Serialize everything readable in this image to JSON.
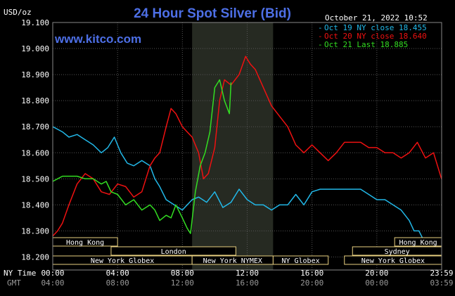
{
  "chart_data": {
    "type": "line",
    "title": "24 Hour Spot Silver (Bid)",
    "watermark": "www.kitco.com",
    "timestamp": "October 21, 2022 10:52",
    "ylabel": "USD/oz",
    "ylim": [
      18.15,
      19.1
    ],
    "yticks": [
      "19.100",
      "19.000",
      "18.900",
      "18.800",
      "18.700",
      "18.600",
      "18.500",
      "18.400",
      "18.300",
      "18.200"
    ],
    "ytick_values": [
      19.1,
      19.0,
      18.9,
      18.8,
      18.7,
      18.6,
      18.5,
      18.4,
      18.3,
      18.2
    ],
    "xlim": [
      0,
      24
    ],
    "x_tick_hours": [
      0,
      4,
      8,
      12,
      16,
      20,
      24
    ],
    "x_axis_ny_label": "NY Time",
    "x_axis_gmt_label": "GMT",
    "x_ticks_ny": [
      "00:00",
      "04:00",
      "08:00",
      "12:00",
      "16:00",
      "20:00",
      "23:59"
    ],
    "x_ticks_gmt": [
      "04:00",
      "08:00",
      "12:00",
      "16:00",
      "20:00",
      "00:00",
      "03:59"
    ],
    "shaded_region": [
      8.6,
      13.6
    ],
    "colors": {
      "background": "#000000",
      "plot_background": "#000000",
      "shade": "#262a22",
      "grid": "#555555",
      "title": "#4d6fe6",
      "watermark": "#4d6fe6",
      "oct19": "#22b8e8",
      "oct20": "#ee1111",
      "oct21": "#33dd22",
      "session_box": "#e8d080",
      "label_text": "#ffffff"
    },
    "legend_position": "top-right",
    "series": [
      {
        "name": "Oct 19 NY close 18.455",
        "color": "#22b8e8",
        "x": [
          0,
          0.3,
          0.6,
          1.0,
          1.5,
          2.0,
          2.5,
          3.0,
          3.4,
          3.8,
          4.2,
          4.6,
          5.0,
          5.5,
          6.0,
          6.3,
          6.6,
          7.0,
          7.5,
          8.0,
          8.3,
          8.6,
          9.0,
          9.5,
          10.0,
          10.5,
          11.0,
          11.5,
          12.0,
          12.5,
          13.0,
          13.5,
          14.0,
          14.5,
          15.0,
          15.5,
          16.0,
          16.5,
          17.0,
          17.5,
          18.0,
          18.5,
          19.0,
          19.5,
          20.0,
          20.5,
          21.0,
          21.5,
          22.0,
          22.3,
          22.6,
          23.0,
          23.3,
          23.6,
          23.99
        ],
        "values": [
          18.7,
          18.69,
          18.68,
          18.66,
          18.67,
          18.65,
          18.63,
          18.6,
          18.62,
          18.66,
          18.6,
          18.56,
          18.55,
          18.57,
          18.55,
          18.5,
          18.47,
          18.42,
          18.4,
          18.38,
          18.4,
          18.42,
          18.43,
          18.41,
          18.45,
          18.39,
          18.41,
          18.46,
          18.42,
          18.4,
          18.4,
          18.38,
          18.4,
          18.4,
          18.44,
          18.4,
          18.45,
          18.46,
          18.46,
          18.46,
          18.46,
          18.46,
          18.46,
          18.44,
          18.42,
          18.42,
          18.4,
          18.38,
          18.34,
          18.3,
          18.3,
          18.25,
          18.23,
          18.26,
          18.27
        ]
      },
      {
        "name": "Oct 20 NY close 18.640",
        "color": "#ee1111",
        "x": [
          0,
          0.3,
          0.6,
          1.0,
          1.5,
          2.0,
          2.5,
          3.0,
          3.5,
          4.0,
          4.5,
          5.0,
          5.5,
          6.0,
          6.3,
          6.6,
          7.0,
          7.3,
          7.6,
          8.0,
          8.3,
          8.6,
          9.0,
          9.3,
          9.6,
          10.0,
          10.3,
          10.6,
          11.0,
          11.5,
          11.9,
          12.2,
          12.5,
          13.0,
          13.5,
          14.0,
          14.5,
          15.0,
          15.5,
          16.0,
          16.5,
          17.0,
          17.5,
          18.0,
          18.5,
          19.0,
          19.5,
          20.0,
          20.5,
          21.0,
          21.5,
          22.0,
          22.5,
          23.0,
          23.5,
          23.99
        ],
        "values": [
          18.28,
          18.3,
          18.33,
          18.4,
          18.48,
          18.52,
          18.5,
          18.45,
          18.44,
          18.48,
          18.47,
          18.43,
          18.45,
          18.55,
          18.58,
          18.6,
          18.7,
          18.77,
          18.75,
          18.7,
          18.68,
          18.66,
          18.6,
          18.5,
          18.52,
          18.62,
          18.8,
          18.88,
          18.86,
          18.9,
          18.97,
          18.94,
          18.92,
          18.85,
          18.78,
          18.74,
          18.7,
          18.63,
          18.6,
          18.63,
          18.6,
          18.57,
          18.6,
          18.64,
          18.64,
          18.64,
          18.62,
          18.62,
          18.6,
          18.6,
          18.58,
          18.6,
          18.64,
          18.58,
          18.6,
          18.5
        ]
      },
      {
        "name": "Oct 21 Last 18.885",
        "color": "#33dd22",
        "x": [
          0,
          0.3,
          0.6,
          1.0,
          1.5,
          2.0,
          2.5,
          3.0,
          3.3,
          3.6,
          4.0,
          4.5,
          5.0,
          5.5,
          6.0,
          6.3,
          6.6,
          7.0,
          7.3,
          7.6,
          8.0,
          8.3,
          8.5,
          8.8,
          9.1,
          9.4,
          9.7,
          10.0,
          10.3,
          10.6,
          10.9,
          11.0
        ],
        "values": [
          18.49,
          18.5,
          18.51,
          18.51,
          18.51,
          18.5,
          18.5,
          18.48,
          18.49,
          18.45,
          18.44,
          18.4,
          18.42,
          18.38,
          18.4,
          18.38,
          18.34,
          18.36,
          18.35,
          18.4,
          18.35,
          18.31,
          18.29,
          18.45,
          18.55,
          18.6,
          18.68,
          18.85,
          18.88,
          18.8,
          18.75,
          18.87
        ]
      }
    ],
    "sessions": [
      {
        "label": "Hong Kong",
        "start": 0,
        "end": 4,
        "row": 0
      },
      {
        "label": "Hong Kong",
        "start": 21.1,
        "end": 24,
        "row": 0
      },
      {
        "label": "London",
        "start": 3.6,
        "end": 11.3,
        "row": 1
      },
      {
        "label": "Sydney",
        "start": 18.5,
        "end": 24,
        "row": 1
      },
      {
        "label": "New York Globex",
        "start": 0,
        "end": 8.6,
        "row": 2
      },
      {
        "label": "New York NYMEX",
        "start": 8.6,
        "end": 13.6,
        "row": 2
      },
      {
        "label": "NY Globex",
        "start": 13.6,
        "end": 17.0,
        "row": 2
      },
      {
        "label": "New York Globex",
        "start": 18.0,
        "end": 24,
        "row": 2
      }
    ]
  }
}
